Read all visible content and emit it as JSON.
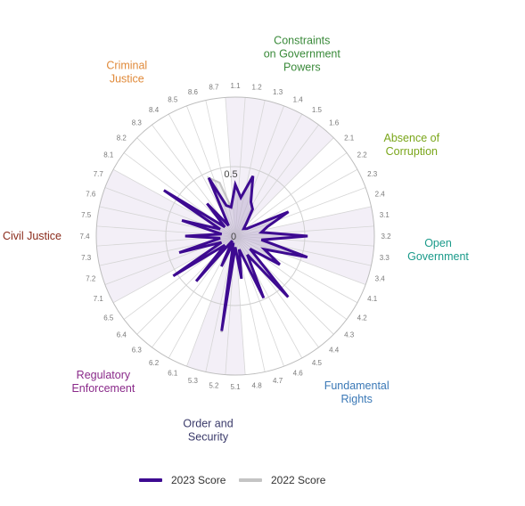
{
  "chart_data": {
    "type": "radar",
    "axes": [
      "1.1",
      "1.2",
      "1.3",
      "1.4",
      "1.5",
      "1.6",
      "2.1",
      "2.2",
      "2.3",
      "2.4",
      "3.1",
      "3.2",
      "3.3",
      "3.4",
      "4.1",
      "4.2",
      "4.3",
      "4.4",
      "4.5",
      "4.6",
      "4.7",
      "4.8",
      "5.1",
      "5.2",
      "5.3",
      "6.1",
      "6.2",
      "6.3",
      "6.4",
      "6.5",
      "7.1",
      "7.2",
      "7.3",
      "7.4",
      "7.5",
      "7.6",
      "7.7",
      "8.1",
      "8.2",
      "8.3",
      "8.4",
      "8.5",
      "8.6",
      "8.7"
    ],
    "range": [
      0,
      1
    ],
    "tick_labels": [
      "0",
      "0.5"
    ],
    "factors": [
      {
        "label": "Constraints on Government Powers",
        "color": "#3a8a3a",
        "axes": [
          "1.1",
          "1.2",
          "1.3",
          "1.4",
          "1.5",
          "1.6"
        ]
      },
      {
        "label": "Absence of Corruption",
        "color": "#7aa61a",
        "axes": [
          "2.1",
          "2.2",
          "2.3",
          "2.4"
        ]
      },
      {
        "label": "Open Government",
        "color": "#1a9a8a",
        "axes": [
          "3.1",
          "3.2",
          "3.3",
          "3.4"
        ]
      },
      {
        "label": "Fundamental Rights",
        "color": "#3a78b6",
        "axes": [
          "4.1",
          "4.2",
          "4.3",
          "4.4",
          "4.5",
          "4.6",
          "4.7",
          "4.8"
        ]
      },
      {
        "label": "Order and Security",
        "color": "#3a3a6a",
        "axes": [
          "5.1",
          "5.2",
          "5.3"
        ]
      },
      {
        "label": "Regulatory Enforcement",
        "color": "#8a2a8a",
        "axes": [
          "6.1",
          "6.2",
          "6.3",
          "6.4",
          "6.5"
        ]
      },
      {
        "label": "Civil Justice",
        "color": "#8a2a1a",
        "axes": [
          "7.1",
          "7.2",
          "7.3",
          "7.4",
          "7.5",
          "7.6",
          "7.7"
        ]
      },
      {
        "label": "Criminal Justice",
        "color": "#e08a3a",
        "axes": [
          "8.1",
          "8.2",
          "8.3",
          "8.4",
          "8.5",
          "8.6",
          "8.7"
        ]
      }
    ],
    "series": [
      {
        "name": "2023 Score",
        "color": "#3d0a91",
        "values": [
          0.37,
          0.28,
          0.45,
          0.27,
          0.23,
          0.12,
          0.08,
          0.1,
          0.42,
          0.24,
          0.19,
          0.52,
          0.19,
          0.54,
          0.23,
          0.38,
          0.14,
          0.58,
          0.16,
          0.49,
          0.1,
          0.31,
          0.08,
          0.69,
          0.05,
          0.24,
          0.04,
          0.43,
          0.1,
          0.53,
          0.11,
          0.42,
          0.11,
          0.36,
          0.1,
          0.4,
          0.12,
          0.61,
          0.1,
          0.31,
          0.09,
          0.46,
          0.23,
          0.21
        ]
      },
      {
        "name": "2022 Score",
        "color": "#c4c4c4",
        "values": [
          0.37,
          0.28,
          0.45,
          0.27,
          0.23,
          0.12,
          0.08,
          0.1,
          0.42,
          0.24,
          0.19,
          0.52,
          0.19,
          0.54,
          0.23,
          0.38,
          0.14,
          0.58,
          0.16,
          0.49,
          0.1,
          0.31,
          0.08,
          0.7,
          0.05,
          0.24,
          0.04,
          0.43,
          0.1,
          0.53,
          0.11,
          0.42,
          0.11,
          0.36,
          0.1,
          0.4,
          0.12,
          0.61,
          0.1,
          0.31,
          0.09,
          0.46,
          0.4,
          0.21
        ]
      }
    ],
    "grid": true,
    "legend_position": "bottom"
  }
}
